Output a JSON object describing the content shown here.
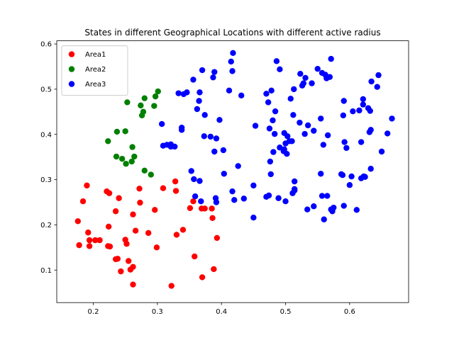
{
  "chart_data": {
    "type": "scatter",
    "title": "States in different Geographical Locations with different active radius",
    "xlabel": "",
    "ylabel": "",
    "xlim": [
      0.143,
      0.692
    ],
    "ylim": [
      0.028,
      0.607
    ],
    "xticks": [
      0.2,
      0.3,
      0.4,
      0.5,
      0.6
    ],
    "xtick_labels": [
      "0.2",
      "0.3",
      "0.4",
      "0.5",
      "0.6"
    ],
    "yticks": [
      0.1,
      0.2,
      0.3,
      0.4,
      0.5,
      0.6
    ],
    "ytick_labels": [
      "0.1",
      "0.2",
      "0.3",
      "0.4",
      "0.5",
      "0.6"
    ],
    "grid": false,
    "legend_position": "upper-left",
    "series": [
      {
        "name": "Area1",
        "color": "#ff0000",
        "points": [
          [
            0.176,
            0.208
          ],
          [
            0.178,
            0.155
          ],
          [
            0.184,
            0.252
          ],
          [
            0.19,
            0.287
          ],
          [
            0.192,
            0.183
          ],
          [
            0.194,
            0.166
          ],
          [
            0.194,
            0.153
          ],
          [
            0.203,
            0.166
          ],
          [
            0.21,
            0.166
          ],
          [
            0.221,
            0.274
          ],
          [
            0.223,
            0.153
          ],
          [
            0.224,
            0.196
          ],
          [
            0.225,
            0.27
          ],
          [
            0.226,
            0.152
          ],
          [
            0.235,
            0.124
          ],
          [
            0.235,
            0.23
          ],
          [
            0.238,
            0.125
          ],
          [
            0.24,
            0.259
          ],
          [
            0.243,
            0.097
          ],
          [
            0.25,
            0.167
          ],
          [
            0.252,
            0.158
          ],
          [
            0.255,
            0.12
          ],
          [
            0.258,
            0.101
          ],
          [
            0.262,
            0.223
          ],
          [
            0.262,
            0.107
          ],
          [
            0.262,
            0.068
          ],
          [
            0.266,
            0.187
          ],
          [
            0.272,
            0.28
          ],
          [
            0.273,
            0.249
          ],
          [
            0.286,
            0.182
          ],
          [
            0.296,
            0.233
          ],
          [
            0.299,
            0.15
          ],
          [
            0.309,
            0.281
          ],
          [
            0.322,
            0.065
          ],
          [
            0.328,
            0.296
          ],
          [
            0.329,
            0.275
          ],
          [
            0.33,
            0.178
          ],
          [
            0.34,
            0.189
          ],
          [
            0.351,
            0.237
          ],
          [
            0.356,
            0.252
          ],
          [
            0.358,
            0.13
          ],
          [
            0.369,
            0.236
          ],
          [
            0.37,
            0.084
          ],
          [
            0.374,
            0.236
          ],
          [
            0.385,
            0.236
          ],
          [
            0.386,
            0.215
          ],
          [
            0.388,
            0.102
          ],
          [
            0.393,
            0.171
          ]
        ]
      },
      {
        "name": "Area2",
        "color": "#008000",
        "points": [
          [
            0.223,
            0.385
          ],
          [
            0.236,
            0.351
          ],
          [
            0.237,
            0.406
          ],
          [
            0.245,
            0.346
          ],
          [
            0.25,
            0.407
          ],
          [
            0.251,
            0.335
          ],
          [
            0.253,
            0.471
          ],
          [
            0.26,
            0.34
          ],
          [
            0.261,
            0.372
          ],
          [
            0.264,
            0.351
          ],
          [
            0.274,
            0.464
          ],
          [
            0.276,
            0.442
          ],
          [
            0.278,
            0.45
          ],
          [
            0.28,
            0.32
          ],
          [
            0.28,
            0.48
          ],
          [
            0.29,
            0.311
          ],
          [
            0.295,
            0.463
          ],
          [
            0.297,
            0.484
          ],
          [
            0.301,
            0.495
          ]
        ]
      },
      {
        "name": "Area3",
        "color": "#0000ff",
        "points": [
          [
            0.307,
            0.423
          ],
          [
            0.309,
            0.375
          ],
          [
            0.315,
            0.377
          ],
          [
            0.321,
            0.378
          ],
          [
            0.321,
            0.373
          ],
          [
            0.327,
            0.373
          ],
          [
            0.333,
            0.491
          ],
          [
            0.338,
            0.41
          ],
          [
            0.338,
            0.415
          ],
          [
            0.341,
            0.489
          ],
          [
            0.346,
            0.493
          ],
          [
            0.353,
            0.319
          ],
          [
            0.356,
            0.521
          ],
          [
            0.357,
            0.301
          ],
          [
            0.359,
            0.263
          ],
          [
            0.362,
            0.456
          ],
          [
            0.365,
            0.474
          ],
          [
            0.366,
            0.297
          ],
          [
            0.366,
            0.493
          ],
          [
            0.368,
            0.252
          ],
          [
            0.37,
            0.542
          ],
          [
            0.373,
            0.396
          ],
          [
            0.374,
            0.443
          ],
          [
            0.383,
            0.395
          ],
          [
            0.387,
            0.526
          ],
          [
            0.389,
            0.538
          ],
          [
            0.389,
            0.362
          ],
          [
            0.391,
            0.259
          ],
          [
            0.392,
            0.25
          ],
          [
            0.392,
            0.391
          ],
          [
            0.397,
            0.432
          ],
          [
            0.403,
            0.365
          ],
          [
            0.404,
            0.313
          ],
          [
            0.412,
            0.497
          ],
          [
            0.415,
            0.561
          ],
          [
            0.417,
            0.54
          ],
          [
            0.417,
            0.274
          ],
          [
            0.418,
            0.58
          ],
          [
            0.42,
            0.255
          ],
          [
            0.426,
            0.33
          ],
          [
            0.431,
            0.486
          ],
          [
            0.435,
            0.258
          ],
          [
            0.45,
            0.216
          ],
          [
            0.45,
            0.287
          ],
          [
            0.453,
            0.419
          ],
          [
            0.47,
            0.262
          ],
          [
            0.47,
            0.49
          ],
          [
            0.473,
            0.471
          ],
          [
            0.474,
            0.265
          ],
          [
            0.475,
            0.413
          ],
          [
            0.476,
            0.34
          ],
          [
            0.477,
            0.312
          ],
          [
            0.478,
            0.497
          ],
          [
            0.48,
            0.431
          ],
          [
            0.481,
            0.361
          ],
          [
            0.483,
            0.401
          ],
          [
            0.484,
            0.451
          ],
          [
            0.486,
            0.562
          ],
          [
            0.489,
            0.259
          ],
          [
            0.491,
            0.544
          ],
          [
            0.491,
            0.371
          ],
          [
            0.497,
            0.363
          ],
          [
            0.498,
            0.367
          ],
          [
            0.498,
            0.403
          ],
          [
            0.5,
            0.38
          ],
          [
            0.5,
            0.252
          ],
          [
            0.502,
            0.357
          ],
          [
            0.503,
            0.396
          ],
          [
            0.506,
            0.385
          ],
          [
            0.508,
            0.479
          ],
          [
            0.51,
            0.385
          ],
          [
            0.511,
            0.27
          ],
          [
            0.512,
            0.443
          ],
          [
            0.513,
            0.5
          ],
          [
            0.514,
            0.296
          ],
          [
            0.514,
            0.276
          ],
          [
            0.514,
            0.279
          ],
          [
            0.522,
            0.426
          ],
          [
            0.523,
            0.534
          ],
          [
            0.526,
            0.508
          ],
          [
            0.528,
            0.513
          ],
          [
            0.53,
            0.401
          ],
          [
            0.531,
            0.525
          ],
          [
            0.534,
            0.234
          ],
          [
            0.535,
            0.42
          ],
          [
            0.541,
            0.513
          ],
          [
            0.544,
            0.241
          ],
          [
            0.544,
            0.408
          ],
          [
            0.55,
            0.545
          ],
          [
            0.555,
            0.435
          ],
          [
            0.555,
            0.313
          ],
          [
            0.557,
            0.264
          ],
          [
            0.557,
            0.536
          ],
          [
            0.559,
            0.377
          ],
          [
            0.56,
            0.212
          ],
          [
            0.562,
            0.532
          ],
          [
            0.564,
            0.524
          ],
          [
            0.565,
            0.264
          ],
          [
            0.566,
            0.398
          ],
          [
            0.569,
            0.527
          ],
          [
            0.571,
            0.567
          ],
          [
            0.571,
            0.234
          ],
          [
            0.573,
            0.23
          ],
          [
            0.575,
            0.238
          ],
          [
            0.587,
            0.312
          ],
          [
            0.589,
            0.31
          ],
          [
            0.59,
            0.442
          ],
          [
            0.591,
            0.474
          ],
          [
            0.591,
            0.242
          ],
          [
            0.592,
            0.383
          ],
          [
            0.595,
            0.37
          ],
          [
            0.6,
            0.288
          ],
          [
            0.603,
            0.307
          ],
          [
            0.605,
            0.451
          ],
          [
            0.611,
            0.233
          ],
          [
            0.615,
            0.453
          ],
          [
            0.618,
            0.383
          ],
          [
            0.618,
            0.303
          ],
          [
            0.621,
            0.466
          ],
          [
            0.621,
            0.478
          ],
          [
            0.622,
            0.307
          ],
          [
            0.624,
            0.306
          ],
          [
            0.629,
            0.458
          ],
          [
            0.631,
            0.405
          ],
          [
            0.632,
            0.452
          ],
          [
            0.633,
            0.41
          ],
          [
            0.633,
            0.324
          ],
          [
            0.634,
            0.517
          ],
          [
            0.643,
            0.505
          ],
          [
            0.645,
            0.531
          ],
          [
            0.65,
            0.362
          ],
          [
            0.659,
            0.402
          ],
          [
            0.666,
            0.435
          ]
        ]
      }
    ]
  }
}
